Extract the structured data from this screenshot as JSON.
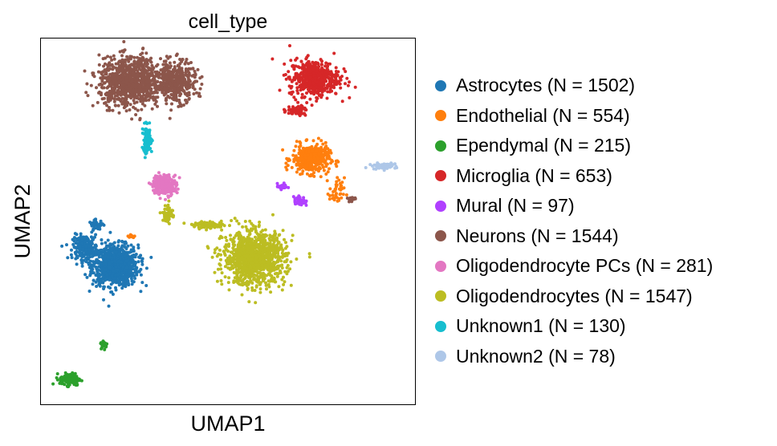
{
  "chart_data": {
    "type": "scatter",
    "title": "cell_type",
    "xlabel": "UMAP1",
    "ylabel": "UMAP2",
    "grid": false,
    "axis_ticks": false,
    "legend_placement": "right",
    "xlim": [
      0,
      10
    ],
    "ylim": [
      0,
      10
    ],
    "clusters": [
      {
        "name": "Astrocytes (N = 1502)",
        "color": "#1f77b4",
        "blobs": [
          {
            "center": [
              2.0,
              3.8
            ],
            "spread": [
              0.55,
              0.5
            ],
            "n": 900
          },
          {
            "center": [
              1.2,
              4.3
            ],
            "spread": [
              0.3,
              0.3
            ],
            "n": 200
          },
          {
            "center": [
              1.5,
              4.9
            ],
            "spread": [
              0.18,
              0.12
            ],
            "n": 40
          }
        ]
      },
      {
        "name": "Endothelial (N = 554)",
        "color": "#ff7f0e",
        "blobs": [
          {
            "center": [
              7.2,
              6.7
            ],
            "spread": [
              0.45,
              0.35
            ],
            "n": 400
          },
          {
            "center": [
              7.9,
              5.8
            ],
            "spread": [
              0.18,
              0.35
            ],
            "n": 40
          },
          {
            "center": [
              2.4,
              4.6
            ],
            "spread": [
              0.1,
              0.05
            ],
            "n": 10
          }
        ]
      },
      {
        "name": "Ependymal (N = 215)",
        "color": "#2ca02c",
        "blobs": [
          {
            "center": [
              0.8,
              0.7
            ],
            "spread": [
              0.25,
              0.15
            ],
            "n": 140
          },
          {
            "center": [
              1.7,
              1.65
            ],
            "spread": [
              0.08,
              0.1
            ],
            "n": 30
          }
        ]
      },
      {
        "name": "Microglia (N = 653)",
        "color": "#d62728",
        "blobs": [
          {
            "center": [
              7.3,
              8.9
            ],
            "spread": [
              0.6,
              0.45
            ],
            "n": 500
          },
          {
            "center": [
              6.8,
              8.0
            ],
            "spread": [
              0.3,
              0.12
            ],
            "n": 60
          }
        ]
      },
      {
        "name": "Mural (N = 97)",
        "color": "#b040ff",
        "blobs": [
          {
            "center": [
              6.45,
              5.95
            ],
            "spread": [
              0.12,
              0.07
            ],
            "n": 30
          },
          {
            "center": [
              6.9,
              5.55
            ],
            "spread": [
              0.14,
              0.12
            ],
            "n": 50
          }
        ]
      },
      {
        "name": "Neurons (N = 1544)",
        "color": "#8c564b",
        "blobs": [
          {
            "center": [
              2.4,
              8.8
            ],
            "spread": [
              0.75,
              0.6
            ],
            "n": 900
          },
          {
            "center": [
              3.6,
              8.8
            ],
            "spread": [
              0.5,
              0.5
            ],
            "n": 400
          },
          {
            "center": [
              8.3,
              5.6
            ],
            "spread": [
              0.1,
              0.05
            ],
            "n": 20
          }
        ]
      },
      {
        "name": "Oligodendrocyte PCs (N = 281)",
        "color": "#e377c2",
        "blobs": [
          {
            "center": [
              3.3,
              6.0
            ],
            "spread": [
              0.3,
              0.25
            ],
            "n": 220
          }
        ]
      },
      {
        "name": "Oligodendrocytes (N = 1547)",
        "color": "#bcbd22",
        "blobs": [
          {
            "center": [
              5.7,
              4.0
            ],
            "spread": [
              0.75,
              0.65
            ],
            "n": 1100
          },
          {
            "center": [
              3.4,
              5.2
            ],
            "spread": [
              0.12,
              0.25
            ],
            "n": 60
          },
          {
            "center": [
              4.5,
              4.9
            ],
            "spread": [
              0.4,
              0.08
            ],
            "n": 90
          }
        ]
      },
      {
        "name": "Unknown1 (N = 130)",
        "color": "#17becf",
        "blobs": [
          {
            "center": [
              2.85,
              7.2
            ],
            "spread": [
              0.12,
              0.35
            ],
            "n": 100
          }
        ]
      },
      {
        "name": "Unknown2 (N = 78)",
        "color": "#aec7e8",
        "blobs": [
          {
            "center": [
              9.15,
              6.5
            ],
            "spread": [
              0.28,
              0.07
            ],
            "n": 70
          }
        ]
      }
    ]
  }
}
